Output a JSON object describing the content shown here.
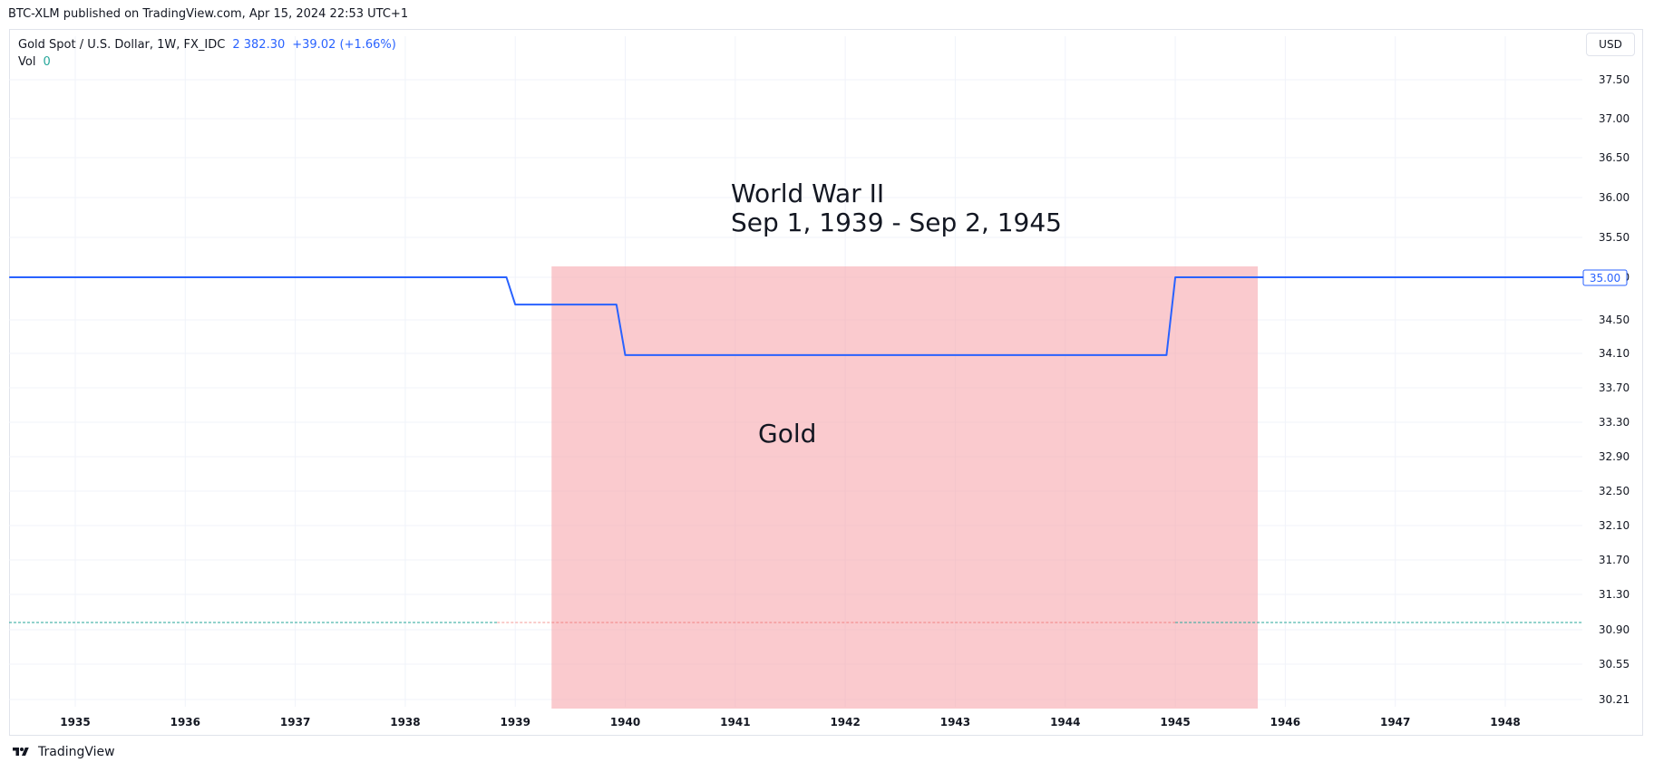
{
  "publisher_line": "BTC-XLM published on TradingView.com, Apr 15, 2024 22:53 UTC+1",
  "legend": {
    "symbol": "Gold Spot / U.S. Dollar, 1W, FX_IDC",
    "price": "2 382.30",
    "change": "+39.02 (+1.66%)",
    "vol_label": "Vol",
    "vol_value": "0"
  },
  "currency_button": "USD",
  "footer": {
    "brand": "TradingView"
  },
  "colors": {
    "line": "#2962ff",
    "highlight": "#f7a6ae",
    "grid": "#f0f3fa",
    "vol_dash": "#26a69a",
    "vol_dash_red": "#ef5350"
  },
  "chart_data": {
    "type": "line",
    "title": "",
    "xlabel": "",
    "ylabel": "",
    "x_ticks": [
      "1935",
      "1936",
      "1937",
      "1938",
      "1939",
      "1940",
      "1941",
      "1942",
      "1943",
      "1944",
      "1945",
      "1946",
      "1947",
      "1948"
    ],
    "y_ticks": [
      "37.50",
      "37.00",
      "36.50",
      "36.00",
      "35.50",
      "35.00",
      "34.50",
      "34.10",
      "33.70",
      "33.30",
      "32.90",
      "32.50",
      "32.10",
      "31.70",
      "31.30",
      "30.90",
      "30.55",
      "30.21"
    ],
    "current_price_label": "35.00",
    "series": [
      {
        "x": [
          1934.4,
          1938.92,
          1939.0,
          1939.92,
          1940.0,
          1944.92,
          1945.0,
          1948.75
        ],
        "y": [
          35.0,
          35.0,
          34.68,
          34.68,
          34.08,
          34.08,
          35.0,
          35.0
        ]
      }
    ],
    "highlight_range": {
      "start": 1939.33,
      "end": 1945.75,
      "label": "Gold"
    },
    "annotation": {
      "line1": "World War II",
      "line2": "Sep 1, 1939 - Sep 2, 1945"
    },
    "xlim": [
      1934.4,
      1948.75
    ],
    "ylim": [
      30.21,
      37.8
    ],
    "grid": true,
    "legend": "top-left"
  }
}
